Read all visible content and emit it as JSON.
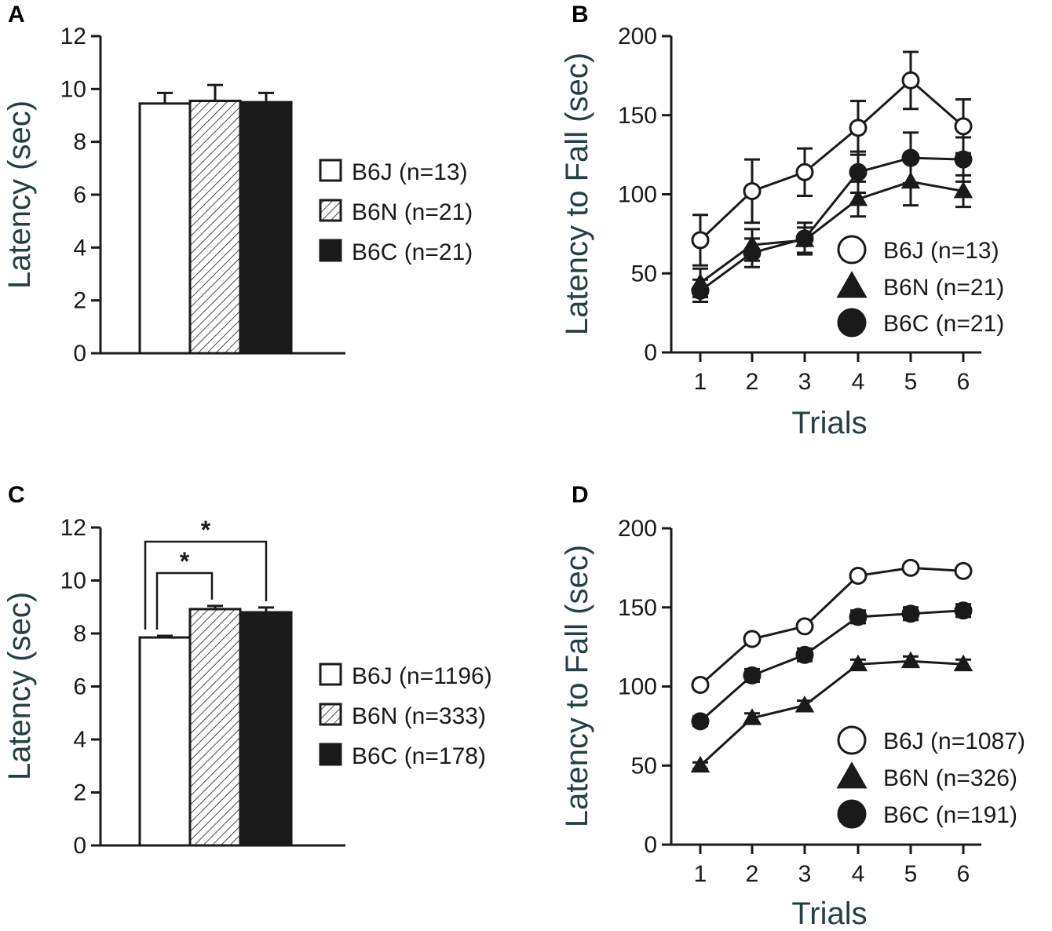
{
  "chart_data": [
    {
      "panel": "A",
      "type": "bar",
      "ylabel": "Latency (sec)",
      "xlabel": "",
      "ylim": [
        0,
        12
      ],
      "yticks": [
        "0",
        "2",
        "4",
        "6",
        "8",
        "10",
        "12"
      ],
      "categories": [
        "B6J",
        "B6N",
        "B6C"
      ],
      "values": [
        9.45,
        9.55,
        9.5
      ],
      "errors": [
        0.4,
        0.6,
        0.35
      ],
      "fills": [
        "white",
        "hatch",
        "black"
      ],
      "legend": [
        "B6J (n=13)",
        "B6N (n=21)",
        "B6C (n=21)"
      ],
      "significance": []
    },
    {
      "panel": "B",
      "type": "line",
      "ylabel": "Latency to Fall (sec)",
      "xlabel": "Trials",
      "ylim": [
        0,
        200
      ],
      "yticks": [
        "0",
        "50",
        "100",
        "150",
        "200"
      ],
      "x": [
        1,
        2,
        3,
        4,
        5,
        6
      ],
      "xticks": [
        "1",
        "2",
        "3",
        "4",
        "5",
        "6"
      ],
      "series": [
        {
          "name": "B6J (n=13)",
          "marker": "open-circle",
          "values": [
            71,
            102,
            114,
            142,
            172,
            143
          ],
          "errors": [
            16,
            20,
            15,
            17,
            18,
            17
          ]
        },
        {
          "name": "B6N (n=21)",
          "marker": "triangle",
          "values": [
            44,
            68,
            71,
            97,
            108,
            102
          ],
          "errors": [
            9,
            10,
            8,
            11,
            15,
            10
          ]
        },
        {
          "name": "B6C (n=21)",
          "marker": "filled-circle",
          "values": [
            39,
            63,
            72,
            114,
            123,
            122
          ],
          "errors": [
            7,
            9,
            10,
            13,
            16,
            14
          ]
        }
      ],
      "legend": [
        "B6J (n=13)",
        "B6N (n=21)",
        "B6C (n=21)"
      ]
    },
    {
      "panel": "C",
      "type": "bar",
      "ylabel": "Latency (sec)",
      "xlabel": "",
      "ylim": [
        0,
        12
      ],
      "yticks": [
        "0",
        "2",
        "4",
        "6",
        "8",
        "10",
        "12"
      ],
      "categories": [
        "B6J",
        "B6N",
        "B6C"
      ],
      "values": [
        7.85,
        8.92,
        8.8
      ],
      "errors": [
        0.06,
        0.12,
        0.18
      ],
      "fills": [
        "white",
        "hatch",
        "black"
      ],
      "legend": [
        "B6J (n=1196)",
        "B6N (n=333)",
        "B6C (n=178)"
      ],
      "significance": [
        {
          "from": 0,
          "to": 1,
          "label": "*"
        },
        {
          "from": 0,
          "to": 2,
          "label": "*"
        }
      ]
    },
    {
      "panel": "D",
      "type": "line",
      "ylabel": "Latency to Fall (sec)",
      "xlabel": "Trials",
      "ylim": [
        0,
        200
      ],
      "yticks": [
        "0",
        "50",
        "100",
        "150",
        "200"
      ],
      "x": [
        1,
        2,
        3,
        4,
        5,
        6
      ],
      "xticks": [
        "1",
        "2",
        "3",
        "4",
        "5",
        "6"
      ],
      "series": [
        {
          "name": "B6J (n=1087)",
          "marker": "open-circle",
          "values": [
            101,
            130,
            138,
            170,
            175,
            173
          ],
          "errors": [
            2,
            2,
            2,
            2,
            2,
            2
          ]
        },
        {
          "name": "B6N (n=326)",
          "marker": "triangle",
          "values": [
            50,
            80,
            88,
            114,
            116,
            114
          ],
          "errors": [
            2,
            3,
            3,
            3,
            3,
            3
          ]
        },
        {
          "name": "B6C (n=191)",
          "marker": "filled-circle",
          "values": [
            78,
            107,
            120,
            144,
            146,
            148
          ],
          "errors": [
            3,
            4,
            4,
            4,
            4,
            4
          ]
        }
      ],
      "legend": [
        "B6J (n=1087)",
        "B6N (n=326)",
        "B6C (n=191)"
      ]
    }
  ]
}
